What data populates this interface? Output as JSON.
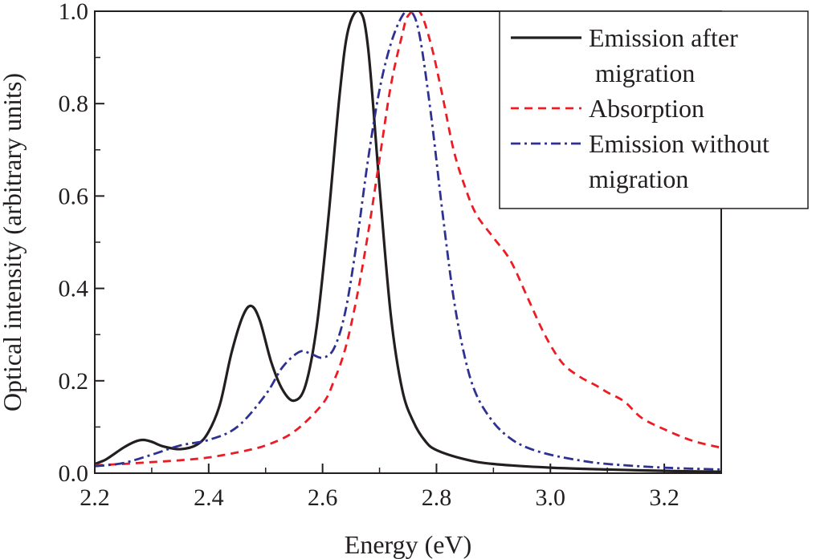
{
  "chart_data": {
    "type": "line",
    "title": "",
    "xlabel": "Energy (eV)",
    "ylabel": "Optical intensity (arbitrary units)",
    "xlim": [
      2.2,
      3.3
    ],
    "ylim": [
      0.0,
      1.0
    ],
    "xticks": [
      {
        "value": 2.2,
        "label": "2.2"
      },
      {
        "value": 2.4,
        "label": "2.4"
      },
      {
        "value": 2.6,
        "label": "2.6"
      },
      {
        "value": 2.8,
        "label": "2.8"
      },
      {
        "value": 3.0,
        "label": "3.0"
      },
      {
        "value": 3.2,
        "label": "3.2"
      }
    ],
    "yticks": [
      {
        "value": 0.0,
        "label": "0.0"
      },
      {
        "value": 0.2,
        "label": "0.2"
      },
      {
        "value": 0.4,
        "label": "0.4"
      },
      {
        "value": 0.6,
        "label": "0.6"
      },
      {
        "value": 0.8,
        "label": "0.8"
      },
      {
        "value": 1.0,
        "label": "1.0"
      }
    ],
    "legend": {
      "position": "top-right",
      "entries": [
        {
          "lines": [
            "Emission after",
            " migration"
          ]
        },
        {
          "lines": [
            "Absorption"
          ]
        },
        {
          "lines": [
            "Emission without",
            "migration"
          ]
        }
      ]
    },
    "series": [
      {
        "name": "Emission after migration",
        "color": "#231f20",
        "style": "solid",
        "x": [
          2.2,
          2.22,
          2.25,
          2.27,
          2.285,
          2.3,
          2.32,
          2.35,
          2.38,
          2.4,
          2.42,
          2.44,
          2.46,
          2.475,
          2.49,
          2.51,
          2.53,
          2.55,
          2.57,
          2.59,
          2.61,
          2.63,
          2.645,
          2.665,
          2.68,
          2.7,
          2.72,
          2.74,
          2.76,
          2.78,
          2.8,
          2.85,
          2.9,
          3.0,
          3.1,
          3.2,
          3.3
        ],
        "y": [
          0.02,
          0.03,
          0.055,
          0.068,
          0.072,
          0.068,
          0.058,
          0.052,
          0.062,
          0.09,
          0.15,
          0.26,
          0.34,
          0.362,
          0.33,
          0.24,
          0.18,
          0.157,
          0.19,
          0.32,
          0.55,
          0.82,
          0.96,
          1.0,
          0.92,
          0.62,
          0.34,
          0.18,
          0.11,
          0.07,
          0.05,
          0.03,
          0.02,
          0.012,
          0.008,
          0.005,
          0.003
        ]
      },
      {
        "name": "Absorption",
        "color": "#ed1c24",
        "style": "dash",
        "x": [
          2.2,
          2.25,
          2.3,
          2.35,
          2.4,
          2.45,
          2.5,
          2.55,
          2.6,
          2.62,
          2.64,
          2.66,
          2.68,
          2.7,
          2.72,
          2.74,
          2.75,
          2.77,
          2.79,
          2.81,
          2.83,
          2.85,
          2.87,
          2.9,
          2.93,
          2.96,
          2.99,
          3.02,
          3.05,
          3.08,
          3.1,
          3.13,
          3.16,
          3.2,
          3.25,
          3.3
        ],
        "y": [
          0.017,
          0.02,
          0.024,
          0.028,
          0.034,
          0.045,
          0.06,
          0.09,
          0.15,
          0.2,
          0.27,
          0.38,
          0.52,
          0.68,
          0.84,
          0.95,
          0.99,
          1.0,
          0.93,
          0.82,
          0.7,
          0.62,
          0.56,
          0.51,
          0.46,
          0.38,
          0.3,
          0.24,
          0.21,
          0.19,
          0.175,
          0.155,
          0.12,
          0.095,
          0.07,
          0.055
        ]
      },
      {
        "name": "Emission without migration",
        "color": "#2e3192",
        "style": "dashdot",
        "x": [
          2.2,
          2.25,
          2.3,
          2.35,
          2.4,
          2.45,
          2.5,
          2.53,
          2.56,
          2.58,
          2.6,
          2.62,
          2.64,
          2.66,
          2.68,
          2.7,
          2.72,
          2.74,
          2.755,
          2.77,
          2.79,
          2.81,
          2.83,
          2.85,
          2.87,
          2.9,
          2.93,
          2.96,
          3.0,
          3.05,
          3.1,
          3.2,
          3.3
        ],
        "y": [
          0.015,
          0.022,
          0.04,
          0.06,
          0.072,
          0.1,
          0.17,
          0.23,
          0.263,
          0.258,
          0.25,
          0.27,
          0.35,
          0.5,
          0.68,
          0.83,
          0.93,
          0.99,
          1.0,
          0.95,
          0.78,
          0.57,
          0.38,
          0.25,
          0.17,
          0.11,
          0.075,
          0.055,
          0.04,
          0.028,
          0.02,
          0.012,
          0.008
        ]
      }
    ]
  }
}
